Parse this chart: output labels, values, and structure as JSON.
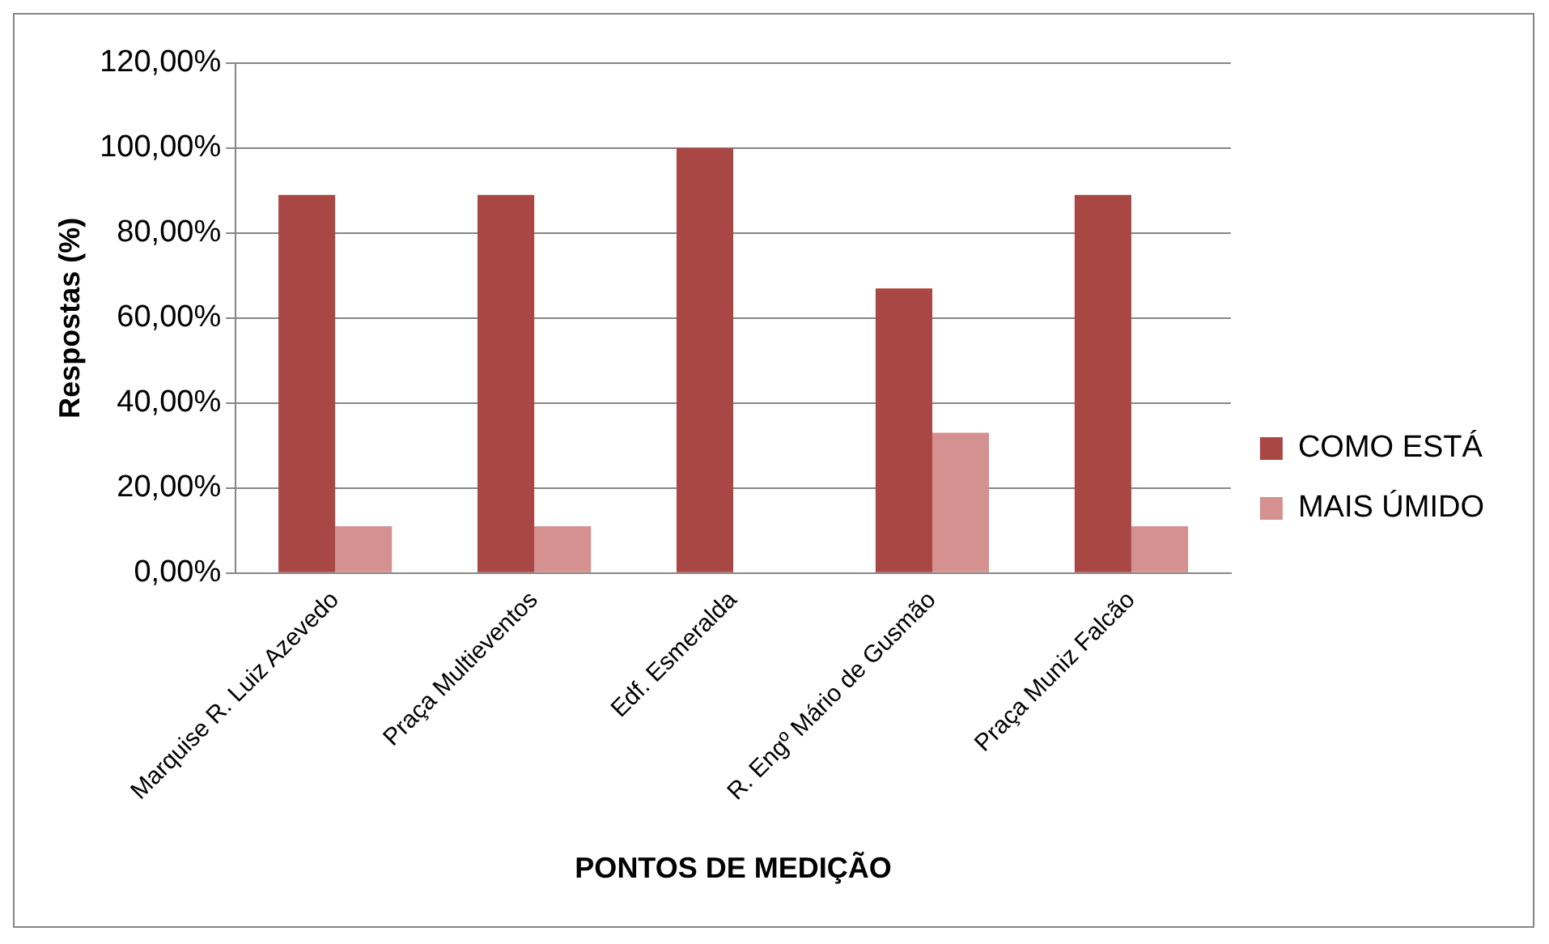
{
  "chart_data": {
    "type": "bar",
    "xlabel": "PONTOS DE MEDIÇÃO",
    "ylabel": "Respostas (%)",
    "categories": [
      "Marquise R. Luiz Azevedo",
      "Praça Multieventos",
      "Edf. Esmeralda",
      "R. Engº Mário de Gusmão",
      "Praça Muniz Falcão"
    ],
    "series": [
      {
        "name": "COMO ESTÁ",
        "color": "#a94744",
        "values": [
          89,
          89,
          100,
          67,
          89
        ]
      },
      {
        "name": "MAIS ÚMIDO",
        "color": "#d49190",
        "values": [
          11,
          11,
          0,
          33,
          11
        ]
      }
    ],
    "ylim": [
      0,
      120
    ],
    "yticks": [
      {
        "value": 0,
        "label": "0,00%"
      },
      {
        "value": 20,
        "label": "20,00%"
      },
      {
        "value": 40,
        "label": "40,00%"
      },
      {
        "value": 60,
        "label": "60,00%"
      },
      {
        "value": 80,
        "label": "80,00%"
      },
      {
        "value": 100,
        "label": "100,00%"
      },
      {
        "value": 120,
        "label": "120,00%"
      }
    ],
    "grid": "y",
    "legend": "right"
  }
}
